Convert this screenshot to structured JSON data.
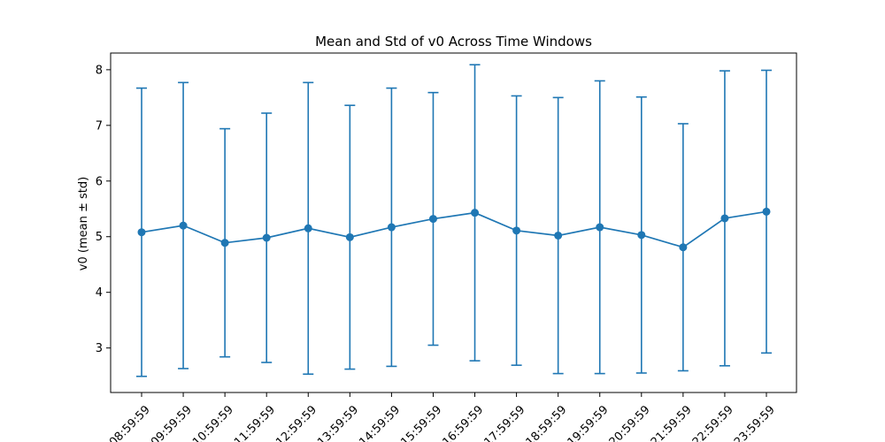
{
  "chart_data": {
    "type": "line",
    "title": "Mean and Std of v0 Across Time Windows",
    "xlabel": "",
    "ylabel": "v0 (mean ± std)",
    "categories": [
      "08:59:59",
      "09:59:59",
      "10:59:59",
      "11:59:59",
      "12:59:59",
      "13:59:59",
      "14:59:59",
      "15:59:59",
      "16:59:59",
      "17:59:59",
      "18:59:59",
      "19:59:59",
      "20:59:59",
      "21:59:59",
      "22:59:59",
      "23:59:59"
    ],
    "series": [
      {
        "values": [
          5.08,
          5.2,
          4.89,
          4.98,
          5.15,
          4.99,
          5.17,
          5.32,
          5.43,
          5.11,
          5.02,
          5.17,
          5.03,
          4.81,
          5.33,
          5.45
        ],
        "std": [
          2.59,
          2.57,
          2.05,
          2.24,
          2.62,
          2.37,
          2.5,
          2.27,
          2.66,
          2.42,
          2.48,
          2.63,
          2.48,
          2.22,
          2.65,
          2.54
        ]
      }
    ],
    "ylim": [
      2.2,
      8.3
    ],
    "yticks": [
      3,
      4,
      5,
      6,
      7,
      8
    ],
    "grid": false,
    "legend": "none",
    "colors": {
      "series": "#1f77b4",
      "axes": "#000000",
      "background": "#ffffff"
    }
  }
}
